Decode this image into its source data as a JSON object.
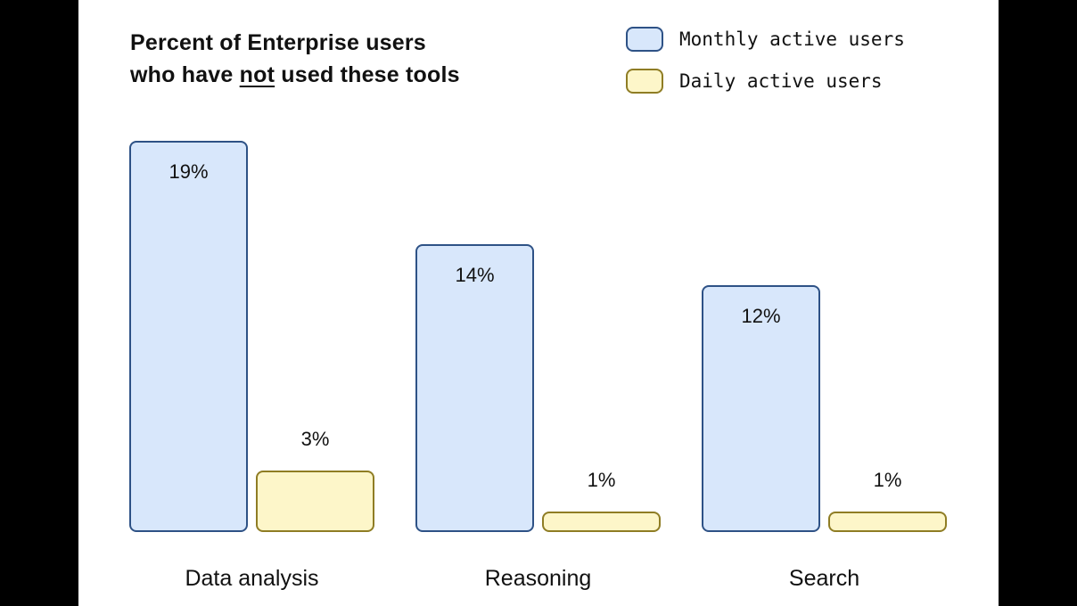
{
  "frame": {
    "letterbox_color": "#000000",
    "canvas_background": "#ffffff",
    "text_color": "#111111"
  },
  "title": {
    "line1": "Percent of Enterprise users",
    "line2_pre": "who have ",
    "line2_underline": "not",
    "line2_post": " used these tools"
  },
  "legend": {
    "items": [
      {
        "label": "Monthly active users",
        "fill": "#d8e7fb",
        "stroke": "#2e5286"
      },
      {
        "label": "Daily active users",
        "fill": "#fdf6c9",
        "stroke": "#8f7d24"
      }
    ]
  },
  "chart_data": {
    "type": "bar",
    "title": "Percent of Enterprise users who have not used these tools",
    "categories": [
      "Data analysis",
      "Reasoning",
      "Search"
    ],
    "series": [
      {
        "name": "Monthly active users",
        "values": [
          19,
          14,
          12
        ],
        "labels": [
          "19%",
          "14%",
          "12%"
        ],
        "fill": "#d8e7fb",
        "stroke": "#2e5286",
        "label_position": "inside"
      },
      {
        "name": "Daily active users",
        "values": [
          3,
          1,
          1
        ],
        "labels": [
          "3%",
          "1%",
          "1%"
        ],
        "fill": "#fdf6c9",
        "stroke": "#8f7d24",
        "label_position": "above"
      }
    ],
    "value_suffix": "%",
    "ylim": [
      0,
      19
    ],
    "grid": false,
    "axes_visible": false,
    "legend_position": "top-right"
  }
}
